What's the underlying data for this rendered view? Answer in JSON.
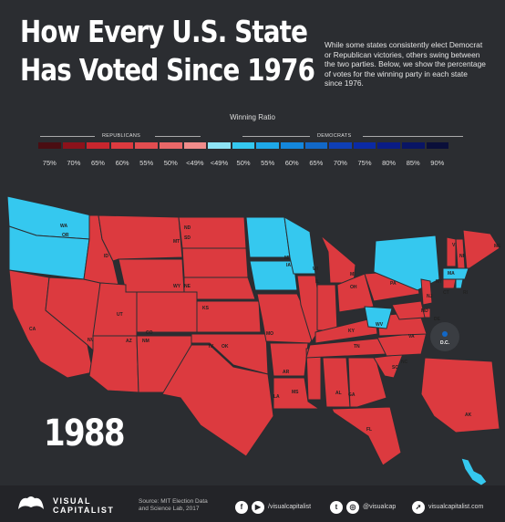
{
  "header": {
    "title_line1": "How Every U.S. State",
    "title_line2": "Has Voted Since 1976",
    "description": "While some states consistently elect Democrat or Republican victories, others swing between the two parties. Below, we show the percentage of votes for the winning party in each state since 1976."
  },
  "legend": {
    "title": "Winning Ratio",
    "republicans_label": "REPUBLICANS",
    "democrats_label": "DEMOCRATS",
    "ticks": [
      "75%",
      "70%",
      "65%",
      "60%",
      "55%",
      "50%",
      "<49%",
      "<49%",
      "50%",
      "55%",
      "60%",
      "65%",
      "70%",
      "75%",
      "80%",
      "85%",
      "90%"
    ],
    "colors": [
      "#4a0d12",
      "#8c121b",
      "#c8262e",
      "#dc3a3f",
      "#e24d50",
      "#ea6768",
      "#f08c8b",
      "#8ee4f5",
      "#35c8ef",
      "#1ea8e8",
      "#1487dc",
      "#1268c7",
      "#0f3fb5",
      "#0b2aa4",
      "#0a1c85",
      "#091565",
      "#0a0f3a"
    ]
  },
  "map": {
    "states": [
      {
        "abbr": "WA",
        "party": "D"
      },
      {
        "abbr": "OR",
        "party": "D"
      },
      {
        "abbr": "CA",
        "party": "R"
      },
      {
        "abbr": "NV",
        "party": "R"
      },
      {
        "abbr": "ID",
        "party": "R"
      },
      {
        "abbr": "MT",
        "party": "R"
      },
      {
        "abbr": "WY",
        "party": "R"
      },
      {
        "abbr": "UT",
        "party": "R"
      },
      {
        "abbr": "AZ",
        "party": "R"
      },
      {
        "abbr": "CO",
        "party": "R"
      },
      {
        "abbr": "NM",
        "party": "R"
      },
      {
        "abbr": "ND",
        "party": "R"
      },
      {
        "abbr": "SD",
        "party": "R"
      },
      {
        "abbr": "NE",
        "party": "R"
      },
      {
        "abbr": "KS",
        "party": "R"
      },
      {
        "abbr": "OK",
        "party": "R"
      },
      {
        "abbr": "TX",
        "party": "R"
      },
      {
        "abbr": "MN",
        "party": "D"
      },
      {
        "abbr": "IA",
        "party": "D"
      },
      {
        "abbr": "MO",
        "party": "R"
      },
      {
        "abbr": "AR",
        "party": "R"
      },
      {
        "abbr": "LA",
        "party": "R"
      },
      {
        "abbr": "WI",
        "party": "D"
      },
      {
        "abbr": "IL",
        "party": "R"
      },
      {
        "abbr": "MS",
        "party": "R"
      },
      {
        "abbr": "MI",
        "party": "R"
      },
      {
        "abbr": "IN",
        "party": "R"
      },
      {
        "abbr": "OH",
        "party": "R"
      },
      {
        "abbr": "KY",
        "party": "R"
      },
      {
        "abbr": "TN",
        "party": "R"
      },
      {
        "abbr": "AL",
        "party": "R"
      },
      {
        "abbr": "GA",
        "party": "R"
      },
      {
        "abbr": "FL",
        "party": "R"
      },
      {
        "abbr": "SC",
        "party": "R"
      },
      {
        "abbr": "NC",
        "party": "R"
      },
      {
        "abbr": "VA",
        "party": "R"
      },
      {
        "abbr": "WV",
        "party": "D"
      },
      {
        "abbr": "PA",
        "party": "R"
      },
      {
        "abbr": "NY",
        "party": "D"
      },
      {
        "abbr": "VT",
        "party": "R"
      },
      {
        "abbr": "NH",
        "party": "R"
      },
      {
        "abbr": "ME",
        "party": "R"
      },
      {
        "abbr": "MA",
        "party": "D"
      },
      {
        "abbr": "CT",
        "party": "R"
      },
      {
        "abbr": "RI",
        "party": "D"
      },
      {
        "abbr": "NJ",
        "party": "R"
      },
      {
        "abbr": "DE",
        "party": "R"
      },
      {
        "abbr": "MD",
        "party": "R"
      },
      {
        "abbr": "DC",
        "label": "D.C.",
        "party": "D"
      },
      {
        "abbr": "AK",
        "party": "R"
      },
      {
        "abbr": "HI",
        "party": "D"
      }
    ]
  },
  "year": "1988",
  "footer": {
    "brand_line1": "VISUAL",
    "brand_line2": "CAPITALIST",
    "source_line1": "Source: MIT Election Data",
    "source_line2": "and Science Lab, 2017",
    "facebook_icon_glyph": "f",
    "youtube_icon_glyph": "▶",
    "facebook_handle": "/visualcapitalist",
    "twitter_icon_glyph": "t",
    "instagram_icon_glyph": "◎",
    "twitter_handle": "@visualcap",
    "web_icon_glyph": "➚",
    "website": "visualcapitalist.com"
  }
}
